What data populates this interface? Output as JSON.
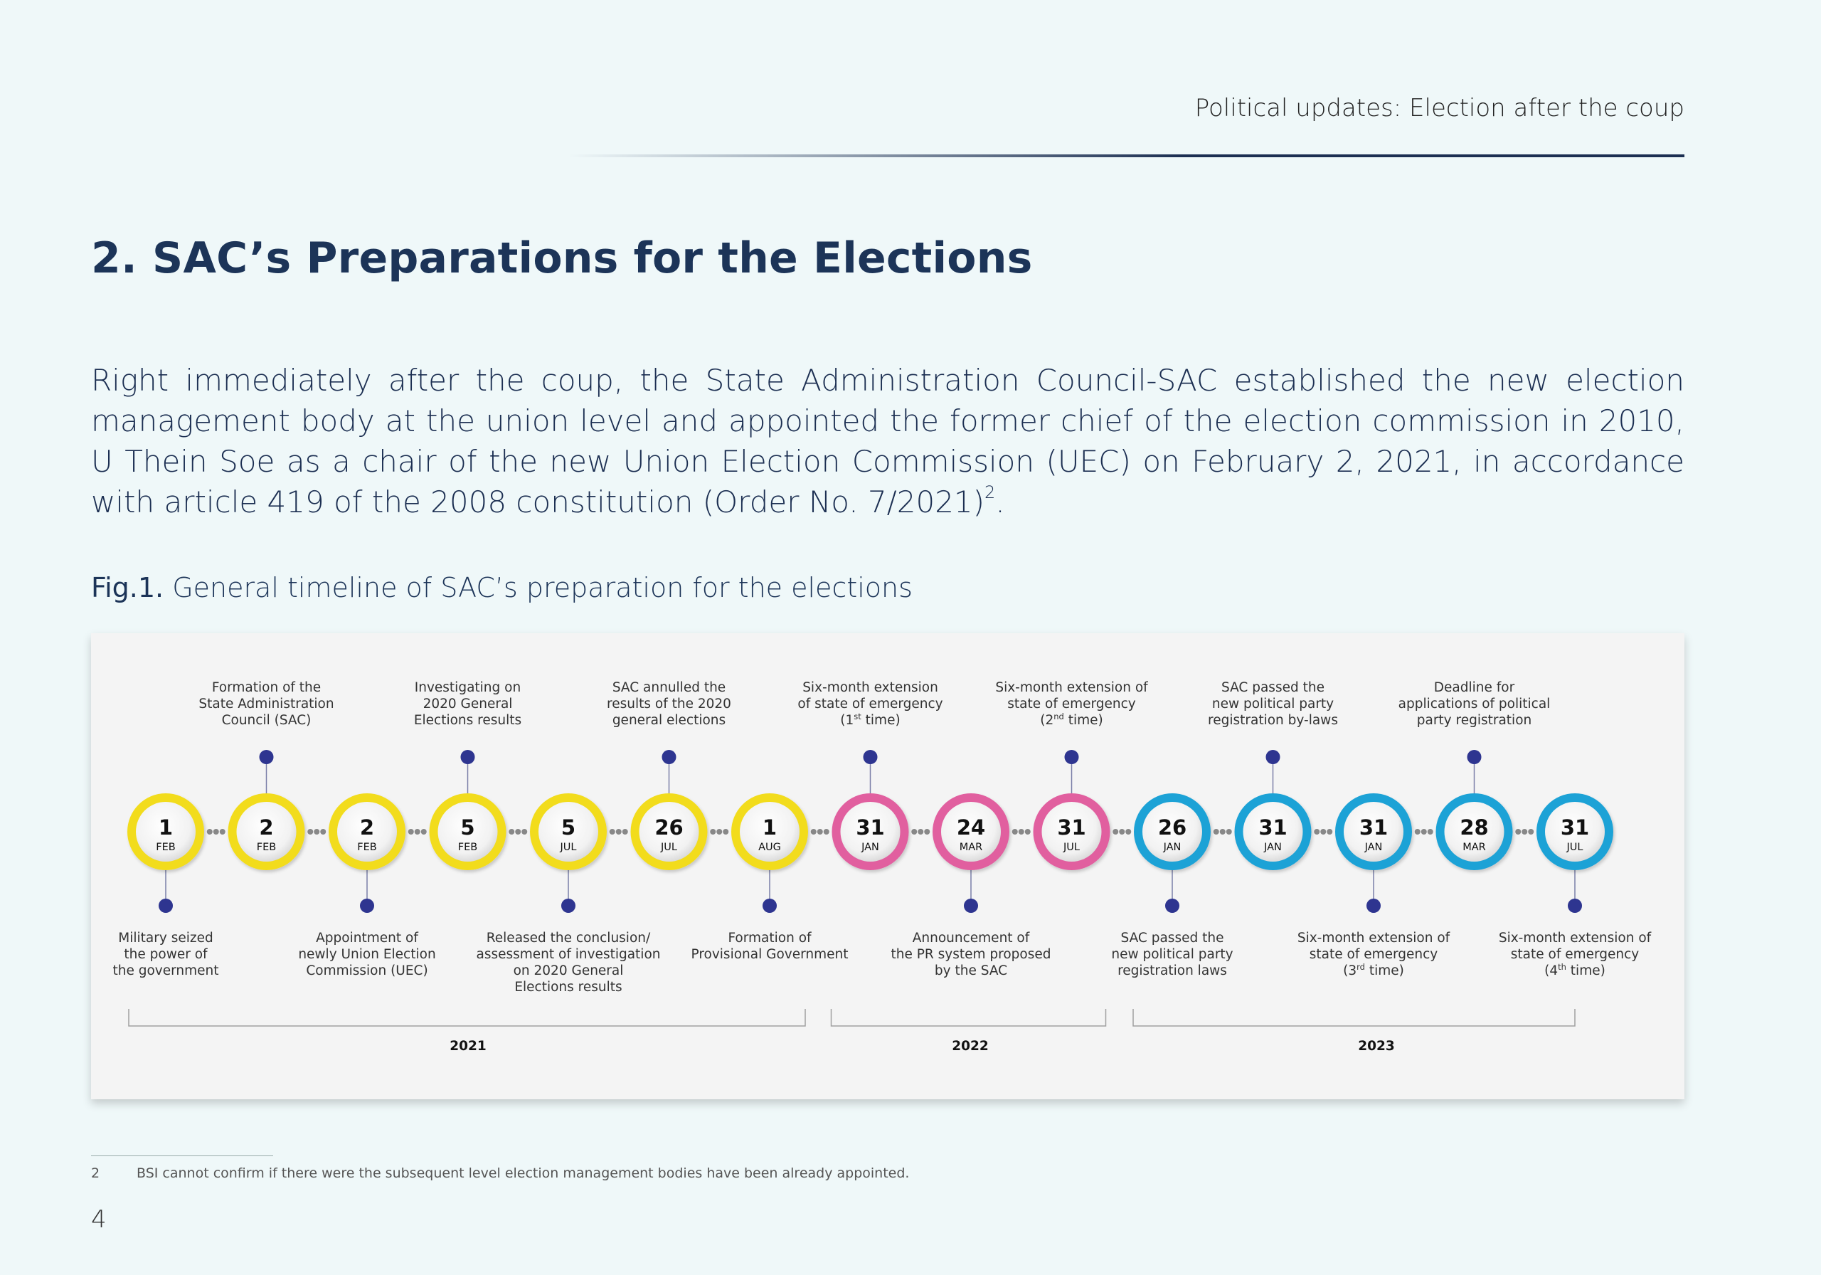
{
  "header": {
    "title": "Political updates: Election after the coup"
  },
  "section_title": "2. SAC’s Preparations for the Elections",
  "body": {
    "text": "Right immediately after the coup, the State Administration Council-SAC established the new election management body at the union level and appointed the former chief of the election commission in 2010, U Thein Soe as a chair of the new Union Election Commission (UEC) on February 2, 2021, in accordance with article 419 of the 2008 constitution (Order No. 7/2021)",
    "footnote_ref": "2",
    "end": "."
  },
  "figure": {
    "label": "Fig.1.",
    "caption": " General timeline of SAC’s preparation for the elections"
  },
  "colors": {
    "y2021": "#f2dc1f",
    "y2022": "#e15f9f",
    "y2023": "#1fa2d6",
    "pin": "#2e3590",
    "connector": "#888888"
  },
  "timeline": [
    {
      "day": "1",
      "month": "FEB",
      "year_group": "y2021",
      "pos": "below",
      "label": [
        "Military seized",
        "the power of",
        "the government"
      ]
    },
    {
      "day": "2",
      "month": "FEB",
      "year_group": "y2021",
      "pos": "above",
      "label": [
        "Formation of the",
        "State Administration",
        "Council (SAC)"
      ]
    },
    {
      "day": "2",
      "month": "FEB",
      "year_group": "y2021",
      "pos": "below",
      "label": [
        "Appointment of",
        "newly Union Election",
        "Commission (UEC)"
      ]
    },
    {
      "day": "5",
      "month": "FEB",
      "year_group": "y2021",
      "pos": "above",
      "label": [
        "Investigating on",
        "2020 General",
        "Elections results"
      ]
    },
    {
      "day": "5",
      "month": "JUL",
      "year_group": "y2021",
      "pos": "below",
      "label": [
        "Released the conclusion/",
        "assessment of investigation",
        "on 2020 General",
        "Elections results"
      ]
    },
    {
      "day": "26",
      "month": "JUL",
      "year_group": "y2021",
      "pos": "above",
      "label": [
        "SAC annulled the",
        "results of the 2020",
        "general elections"
      ]
    },
    {
      "day": "1",
      "month": "AUG",
      "year_group": "y2021",
      "pos": "below",
      "label": [
        "Formation of",
        "Provisional Government"
      ]
    },
    {
      "day": "31",
      "month": "JAN",
      "year_group": "y2022",
      "pos": "above",
      "label": [
        "Six-month extension",
        "of state of emergency",
        "(1st time)"
      ]
    },
    {
      "day": "24",
      "month": "MAR",
      "year_group": "y2022",
      "pos": "below",
      "label": [
        "Announcement of",
        "the PR system proposed",
        "by the SAC"
      ]
    },
    {
      "day": "31",
      "month": "JUL",
      "year_group": "y2022",
      "pos": "above",
      "label": [
        "Six-month  extension of",
        "state of emergency",
        "(2nd time)"
      ]
    },
    {
      "day": "26",
      "month": "JAN",
      "year_group": "y2023",
      "pos": "below",
      "label": [
        "SAC passed the",
        "new political party",
        "registration laws"
      ]
    },
    {
      "day": "31",
      "month": "JAN",
      "year_group": "y2023",
      "pos": "above",
      "label": [
        "SAC passed the",
        "new political party",
        "registration by-laws"
      ]
    },
    {
      "day": "31",
      "month": "JAN",
      "year_group": "y2023",
      "pos": "below",
      "label": [
        "Six-month  extension of",
        "state of emergency",
        "(3rd time)"
      ]
    },
    {
      "day": "28",
      "month": "MAR",
      "year_group": "y2023",
      "pos": "above",
      "label": [
        "Deadline for",
        "applications of political",
        "party registration"
      ]
    },
    {
      "day": "31",
      "month": "JUL",
      "year_group": "y2023",
      "pos": "below",
      "label": [
        "Six-month  extension of",
        "state of emergency",
        "(4th time)"
      ]
    }
  ],
  "year_brackets": [
    {
      "label": "2021",
      "from": 0,
      "to": 6
    },
    {
      "label": "2022",
      "from": 7,
      "to": 9
    },
    {
      "label": "2023",
      "from": 10,
      "to": 14
    }
  ],
  "footnote": {
    "number": "2",
    "text": "BSI cannot confirm if there were the subsequent level election management bodies have been already appointed."
  },
  "page_number": "4"
}
